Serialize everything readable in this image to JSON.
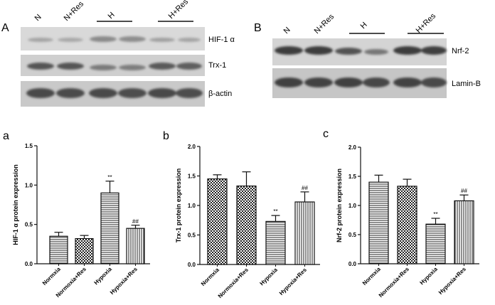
{
  "blots": {
    "A": {
      "panel_label": "A",
      "lanes": [
        "N",
        "N+Res",
        "H",
        "H+Res"
      ],
      "bands": [
        "HIF-1 α",
        "Trx-1",
        "β-actin"
      ]
    },
    "B": {
      "panel_label": "B",
      "lanes": [
        "N",
        "N+Res",
        "H",
        "H+Res"
      ],
      "bands": [
        "Nrf-2",
        "Lamin-B"
      ]
    },
    "colors": {
      "blot_bg": "#d4d4d4",
      "band": "#3a3a3a"
    }
  },
  "chart_data": [
    {
      "panel_label": "a",
      "type": "bar",
      "categories": [
        "Normxia",
        "Normoxia+Res",
        "Hypoxia",
        "Hypoxia+Res"
      ],
      "values": [
        0.35,
        0.32,
        0.9,
        0.45
      ],
      "errors": [
        0.05,
        0.04,
        0.15,
        0.04
      ],
      "annotations": [
        "",
        "",
        "**",
        "##"
      ],
      "patterns": [
        "hlines",
        "checker",
        "hlines",
        "vlines"
      ],
      "ylabel": "HIF-1 α  protein expression",
      "ylim": [
        0,
        1.5
      ],
      "yticks": [
        "0.0",
        "0.5",
        "1.0",
        "1.5"
      ]
    },
    {
      "panel_label": "b",
      "type": "bar",
      "categories": [
        "Normxia",
        "Normoxia+Res",
        "Hypoxia",
        "Hypoxia+Res"
      ],
      "values": [
        1.45,
        1.33,
        0.73,
        1.06
      ],
      "errors": [
        0.07,
        0.24,
        0.1,
        0.17
      ],
      "annotations": [
        "",
        "",
        "**",
        "##"
      ],
      "patterns": [
        "checker",
        "checker",
        "hlines",
        "vlines"
      ],
      "ylabel": "Trx-1 protein expression",
      "ylim": [
        0,
        2.0
      ],
      "yticks": [
        "0.0",
        "0.5",
        "1.0",
        "1.5",
        "2.0"
      ]
    },
    {
      "panel_label": "c",
      "type": "bar",
      "categories": [
        "Normxia",
        "Normoxia+Res",
        "Hypoxia",
        "Hypoxia+Res"
      ],
      "values": [
        1.4,
        1.33,
        0.68,
        1.08
      ],
      "errors": [
        0.12,
        0.12,
        0.1,
        0.1
      ],
      "annotations": [
        "",
        "",
        "**",
        "##"
      ],
      "patterns": [
        "hlines",
        "checker",
        "hlines",
        "vlines"
      ],
      "ylabel": "Nrf-2 protein expression",
      "ylim": [
        0,
        2.0
      ],
      "yticks": [
        "0.0",
        "0.5",
        "1.0",
        "1.5",
        "2.0"
      ]
    }
  ]
}
